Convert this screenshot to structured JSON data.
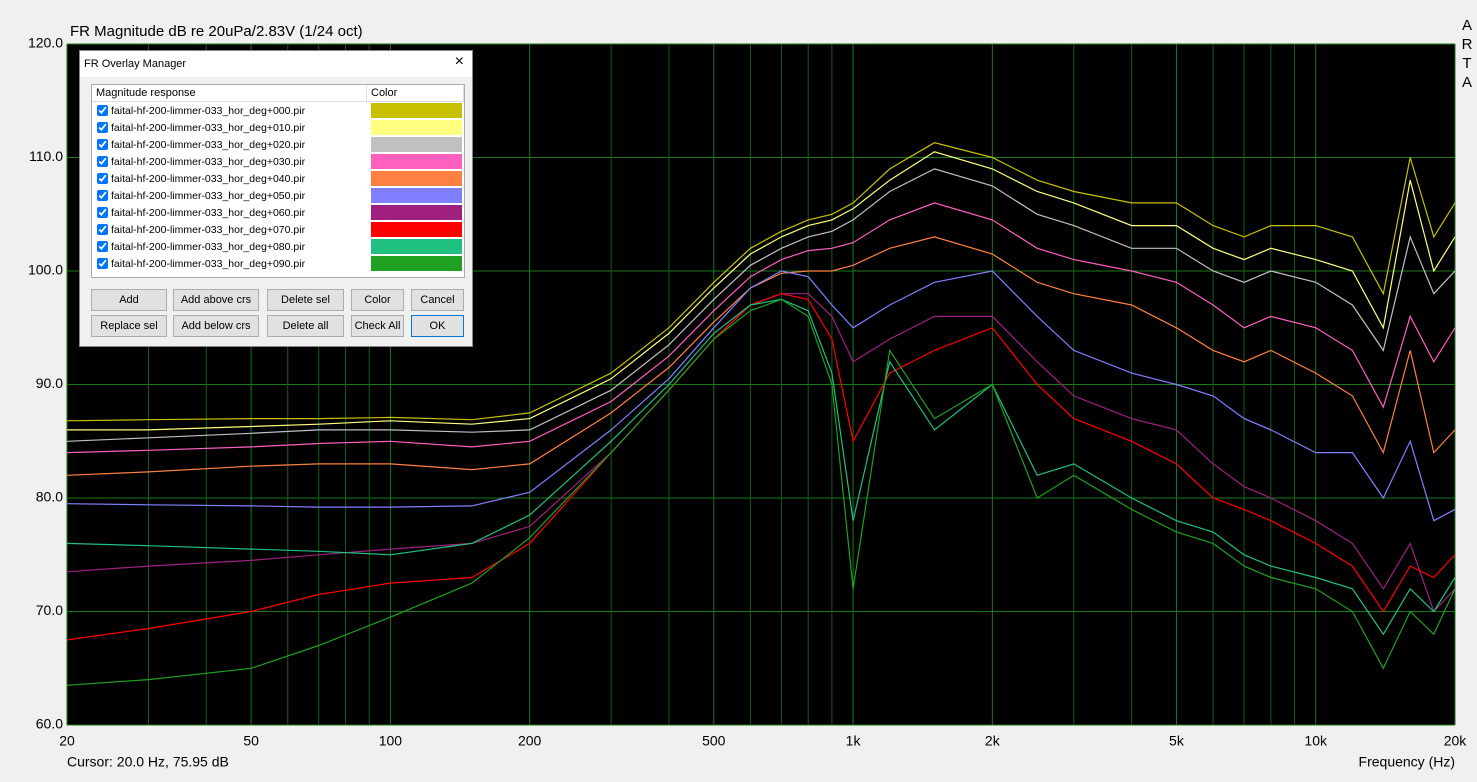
{
  "chart_data": {
    "type": "line",
    "title": "FR Magnitude dB re 20uPa/2.83V (1/24 oct)",
    "x_label": "Frequency (Hz)",
    "x_scale": "log",
    "xlim": [
      20,
      20000
    ],
    "ylim": [
      60,
      120
    ],
    "xticks": [
      20,
      50,
      100,
      200,
      500,
      {
        "value": 1000,
        "label": "1k"
      },
      {
        "value": 2000,
        "label": "2k"
      },
      {
        "value": 5000,
        "label": "5k"
      },
      {
        "value": 10000,
        "label": "10k"
      },
      {
        "value": 20000,
        "label": "20k"
      }
    ],
    "minor_xticks": [
      30,
      40,
      60,
      70,
      80,
      90,
      300,
      400,
      600,
      700,
      800,
      900,
      3000,
      4000,
      6000,
      7000,
      8000,
      9000
    ],
    "yticks": [
      {
        "value": 60,
        "label": "60.0"
      },
      {
        "value": 70,
        "label": "70.0"
      },
      {
        "value": 80,
        "label": "80.0"
      },
      {
        "value": 90,
        "label": "90.0"
      },
      {
        "value": 100,
        "label": "100.0"
      },
      {
        "value": 110,
        "label": "110.0"
      },
      {
        "value": 120,
        "label": "120.0"
      }
    ],
    "grid": true,
    "x": [
      20,
      30,
      50,
      70,
      100,
      150,
      200,
      300,
      400,
      500,
      600,
      700,
      800,
      900,
      1000,
      1200,
      1500,
      2000,
      2500,
      3000,
      4000,
      5000,
      6000,
      7000,
      8000,
      10000,
      12000,
      14000,
      16000,
      18000,
      20000
    ],
    "series": [
      {
        "name": "faital-hf-200-limmer-033_hor_deg+000.pir",
        "color": "#c8c000",
        "checked": true,
        "values": [
          86.8,
          86.9,
          87,
          87,
          87.1,
          86.9,
          87.5,
          91,
          95,
          99,
          102,
          103.5,
          104.5,
          105,
          106,
          109,
          111.3,
          110,
          108,
          107,
          106,
          106,
          104,
          103,
          104,
          104,
          103,
          98,
          110,
          103,
          106
        ]
      },
      {
        "name": "faital-hf-200-limmer-033_hor_deg+010.pir",
        "color": "#ffff80",
        "checked": true,
        "values": [
          86,
          86,
          86.3,
          86.5,
          86.8,
          86.5,
          87,
          90.5,
          94.5,
          98.5,
          101.5,
          103,
          104,
          104.5,
          105.5,
          108,
          110.5,
          109,
          107,
          106,
          104,
          104,
          102,
          101,
          102,
          101,
          100,
          95,
          108,
          100,
          103
        ]
      },
      {
        "name": "faital-hf-200-limmer-033_hor_deg+020.pir",
        "color": "#c0c0c0",
        "checked": true,
        "values": [
          85,
          85.3,
          85.7,
          86,
          86,
          85.8,
          86,
          89.5,
          93.5,
          97.5,
          100.5,
          102,
          103,
          103.5,
          104.5,
          107,
          109,
          107.5,
          105,
          104,
          102,
          102,
          100,
          99,
          100,
          99,
          97,
          93,
          103,
          98,
          100
        ]
      },
      {
        "name": "faital-hf-200-limmer-033_hor_deg+030.pir",
        "color": "#ff60c0",
        "checked": true,
        "values": [
          84,
          84.2,
          84.5,
          84.8,
          85,
          84.5,
          85,
          88.5,
          92.5,
          96.5,
          99.5,
          101,
          101.8,
          102,
          102.5,
          104.5,
          106,
          104.5,
          102,
          101,
          100,
          99,
          97,
          95,
          96,
          95,
          93,
          88,
          96,
          92,
          95
        ]
      },
      {
        "name": "faital-hf-200-limmer-033_hor_deg+040.pir",
        "color": "#ff8040",
        "checked": true,
        "values": [
          82,
          82.3,
          82.8,
          83,
          83,
          82.5,
          83,
          87.5,
          91.5,
          95.5,
          98.5,
          99.8,
          100,
          100,
          100.5,
          102,
          103,
          101.5,
          99,
          98,
          97,
          95,
          93,
          92,
          93,
          91,
          89,
          84,
          93,
          84,
          86
        ]
      },
      {
        "name": "faital-hf-200-limmer-033_hor_deg+050.pir",
        "color": "#8080ff",
        "checked": true,
        "values": [
          79.5,
          79.4,
          79.3,
          79.2,
          79.2,
          79.3,
          80.5,
          86,
          90.5,
          95,
          98.5,
          100,
          99.5,
          97,
          95,
          97,
          99,
          100,
          96,
          93,
          91,
          90,
          89,
          87,
          86,
          84,
          84,
          80,
          85,
          78,
          79
        ]
      },
      {
        "name": "faital-hf-200-limmer-033_hor_deg+060.pir",
        "color": "#a02080",
        "checked": true,
        "values": [
          73.5,
          74,
          74.5,
          75,
          75.5,
          76,
          77.5,
          84,
          89.5,
          94,
          97,
          98,
          98,
          96,
          92,
          94,
          96,
          96,
          92,
          89,
          87,
          86,
          83,
          81,
          80,
          78,
          76,
          72,
          76,
          70,
          72
        ]
      },
      {
        "name": "faital-hf-200-limmer-033_hor_deg+070.pir",
        "color": "#ff0000",
        "checked": true,
        "values": [
          67.5,
          68.5,
          70,
          71.5,
          72.5,
          73,
          76,
          84,
          89.5,
          94,
          97,
          98,
          97.5,
          94,
          85,
          91,
          93,
          95,
          90,
          87,
          85,
          83,
          80,
          79,
          78,
          76,
          74,
          70,
          74,
          73,
          75
        ]
      },
      {
        "name": "faital-hf-200-limmer-033_hor_deg+080.pir",
        "color": "#20c080",
        "checked": true,
        "values": [
          76,
          75.8,
          75.5,
          75.3,
          75,
          76,
          78.5,
          85,
          90,
          94.5,
          97,
          97.5,
          96.5,
          91,
          78,
          92,
          86,
          90,
          82,
          83,
          80,
          78,
          77,
          75,
          74,
          73,
          72,
          68,
          72,
          70,
          73
        ]
      },
      {
        "name": "faital-hf-200-limmer-033_hor_deg+090.pir",
        "color": "#20a020",
        "checked": true,
        "values": [
          63.5,
          64,
          65,
          67,
          69.5,
          72.5,
          76.5,
          84,
          89.5,
          94,
          96.5,
          97.5,
          96,
          90,
          72,
          93,
          87,
          90,
          80,
          82,
          79,
          77,
          76,
          74,
          73,
          72,
          70,
          65,
          70,
          68,
          72
        ]
      }
    ]
  },
  "cursor": "Cursor: 20.0 Hz, 75.95 dB",
  "watermark": "ARTA",
  "dialog": {
    "title": "FR Overlay Manager",
    "columns": [
      "Magnitude response",
      "Color"
    ],
    "buttons": [
      [
        "Add",
        "Add above crs",
        "Delete sel",
        "Color",
        "Cancel"
      ],
      [
        "Replace sel",
        "Add below crs",
        "Delete all",
        "Check All",
        "OK"
      ]
    ]
  }
}
